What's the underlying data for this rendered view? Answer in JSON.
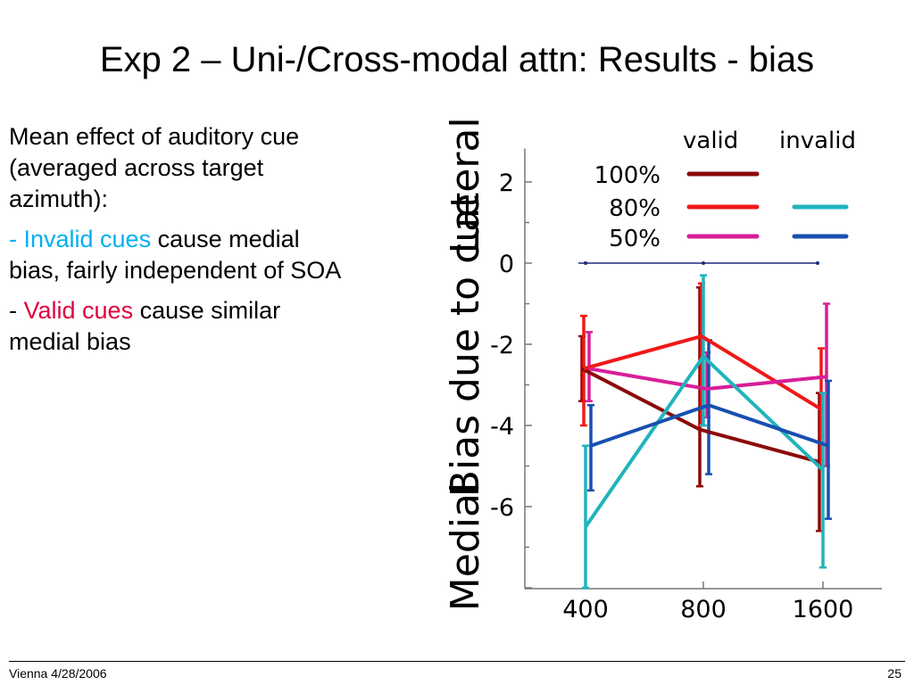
{
  "slide": {
    "title": "Exp 2 – Uni-/Cross-modal attn: Results - bias",
    "body": {
      "intro": "Mean effect of auditory cue (averaged across target azimuth):",
      "bullet1_highlight": "- Invalid cues",
      "bullet1_rest": " cause medial bias, fairly independent of SOA",
      "bullet2_prefix": "- ",
      "bullet2_highlight": "Valid cues",
      "bullet2_rest": " cause similar medial bias"
    },
    "footer": {
      "left": "Vienna 4/28/2006",
      "page": "25"
    },
    "colors": {
      "invalid_text": "#00b0f0",
      "valid_text": "#e0003c"
    }
  },
  "chart_data": {
    "type": "line",
    "title": "",
    "xlabel": "",
    "ylabel": "Bias due to cue",
    "y_direction_labels": {
      "top": "Lateral",
      "bottom": "Medial"
    },
    "categories": [
      "400",
      "800",
      "1600"
    ],
    "yticks": [
      "2",
      "0",
      "-2",
      "-4",
      "-6"
    ],
    "ylim": [
      -8,
      3
    ],
    "legend_headers": {
      "valid": "valid",
      "invalid": "invalid"
    },
    "legend_rows": [
      "100%",
      "80%",
      "50%"
    ],
    "series": [
      {
        "cue": "valid",
        "validity": "100%",
        "color": "#8b0a0a",
        "values": [
          -2.6,
          -4.1,
          -4.9
        ],
        "err_low": [
          -3.4,
          -5.5,
          -6.6
        ],
        "err_high": [
          -1.8,
          -0.6,
          -3.2
        ]
      },
      {
        "cue": "valid",
        "validity": "80%",
        "color": "#f01818",
        "values": [
          -2.6,
          -1.8,
          -3.6
        ],
        "err_low": [
          -4.0,
          -4.0,
          -5.0
        ],
        "err_high": [
          -1.3,
          -0.5,
          -2.1
        ]
      },
      {
        "cue": "valid",
        "validity": "50%",
        "color": "#d81e98",
        "values": [
          -2.6,
          -3.1,
          -2.8
        ],
        "err_low": [
          -3.4,
          -3.8,
          -5.0
        ],
        "err_high": [
          -1.7,
          -2.2,
          -1.0
        ]
      },
      {
        "cue": "invalid",
        "validity": "80%",
        "color": "#20b4bc",
        "values": [
          -6.5,
          -2.3,
          -5.1
        ],
        "err_low": [
          -8.0,
          -4.0,
          -7.5
        ],
        "err_high": [
          -4.5,
          -0.3,
          -3.2
        ]
      },
      {
        "cue": "invalid",
        "validity": "50%",
        "color": "#1850b0",
        "values": [
          -4.5,
          -3.5,
          -4.5
        ],
        "err_low": [
          -5.6,
          -5.2,
          -6.3
        ],
        "err_high": [
          -3.5,
          -1.9,
          -2.9
        ]
      }
    ],
    "reference_line": {
      "y": 0,
      "color": "#1a2a7a"
    },
    "grid": false,
    "legend_position": "top-right"
  }
}
